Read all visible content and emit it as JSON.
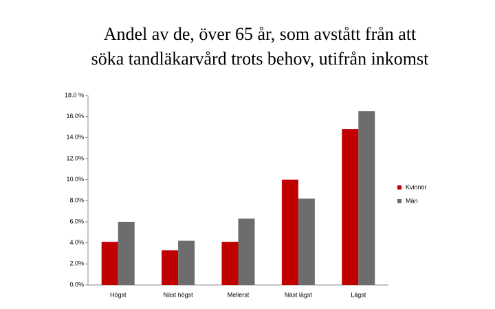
{
  "chart_data": {
    "type": "bar",
    "title": [
      "Andel av de, över 65 år, som  avstått från att",
      "söka tandläkarvård trots behov, utifrån inkomst"
    ],
    "categories": [
      "Högst",
      "Näst högst",
      "Mellerst",
      "Näst lägst",
      "Lägst"
    ],
    "series": [
      {
        "name": "Kvinnor",
        "color": "#c00000",
        "values": [
          4.1,
          3.3,
          4.1,
          10.0,
          14.8
        ]
      },
      {
        "name": "Män",
        "color": "#6d6d6d",
        "values": [
          6.0,
          4.2,
          6.3,
          8.2,
          16.5
        ]
      }
    ],
    "ylim": [
      0,
      18
    ],
    "yticks": [
      {
        "value": 0,
        "label": "0.0%"
      },
      {
        "value": 2,
        "label": "2.0%"
      },
      {
        "value": 4,
        "label": "4.0%"
      },
      {
        "value": 6,
        "label": "6.0%"
      },
      {
        "value": 8,
        "label": "8.0%"
      },
      {
        "value": 10,
        "label": "10.0%"
      },
      {
        "value": 12,
        "label": "12.0%"
      },
      {
        "value": 14,
        "label": "14.0%"
      },
      {
        "value": 16,
        "label": "16.0%"
      },
      {
        "value": 18,
        "label": "18.0 %"
      }
    ],
    "grid": false,
    "legend": "right"
  }
}
